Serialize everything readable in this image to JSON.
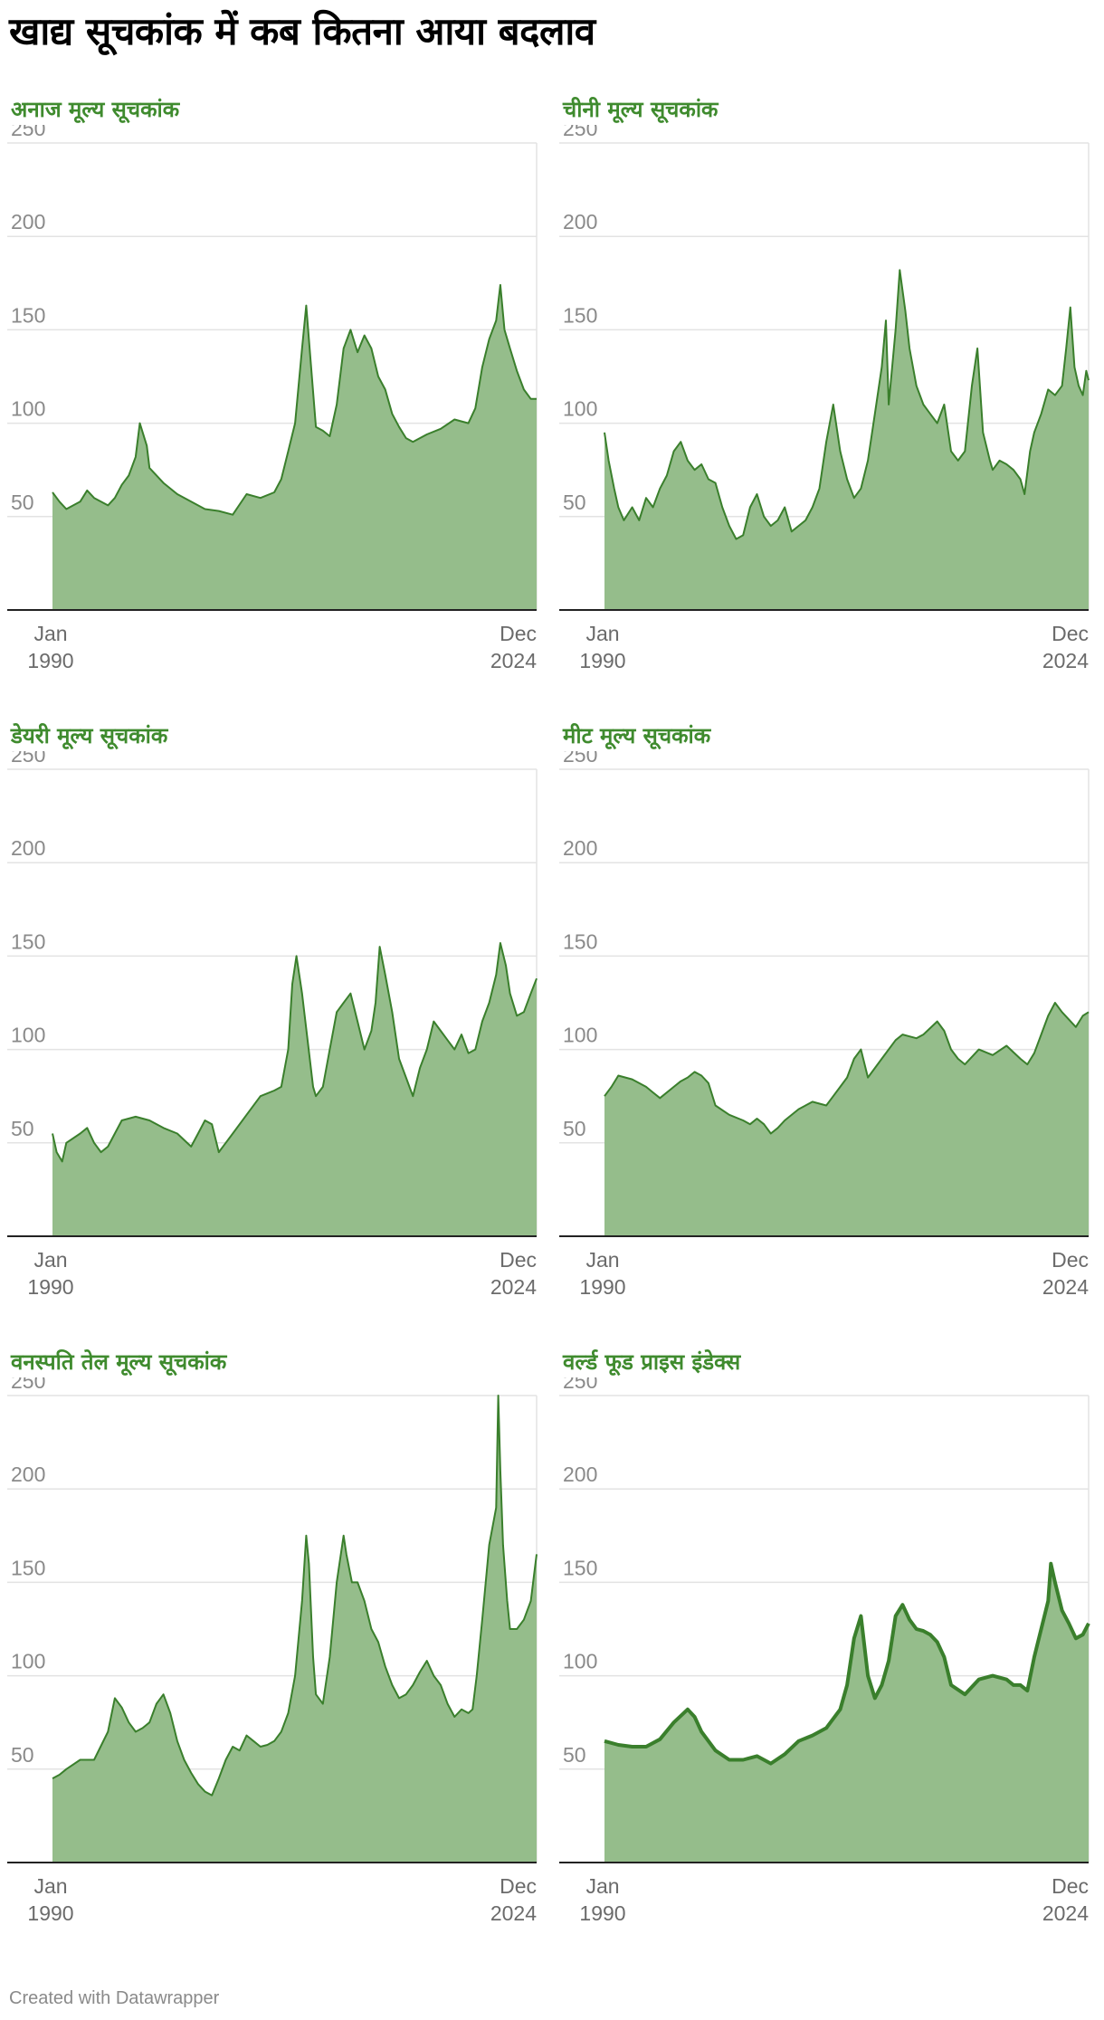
{
  "page_title": "खाद्य सूचकांक में कब कितना आया बदलाव",
  "footer": "Created with Datawrapper",
  "colors": {
    "line": "#3a7f2c",
    "area": "#95bd8b",
    "title": "#3f8b2e",
    "grid": "#e3e3e3",
    "axis": "#222222"
  },
  "chart_data": [
    {
      "type": "area",
      "title": "अनाज मूल्य सूचकांक",
      "x_start_label": [
        "Jan",
        "1990"
      ],
      "x_end_label": [
        "Dec",
        "2024"
      ],
      "x": [
        1990.0,
        1990.5,
        1991.0,
        1992.0,
        1992.5,
        1993.0,
        1994.0,
        1994.5,
        1995.0,
        1995.5,
        1996.0,
        1996.3,
        1996.8,
        1997.0,
        1998.0,
        1999.0,
        2000.0,
        2001.0,
        2002.0,
        2003.0,
        2004.0,
        2005.0,
        2006.0,
        2006.5,
        2007.0,
        2007.5,
        2008.0,
        2008.3,
        2008.6,
        2009.0,
        2009.5,
        2010.0,
        2010.5,
        2011.0,
        2011.5,
        2012.0,
        2012.5,
        2013.0,
        2013.5,
        2014.0,
        2014.5,
        2015.0,
        2015.5,
        2016.0,
        2017.0,
        2018.0,
        2019.0,
        2020.0,
        2020.5,
        2021.0,
        2021.5,
        2022.0,
        2022.3,
        2022.6,
        2023.0,
        2023.5,
        2024.0,
        2024.5,
        2024.92
      ],
      "values": [
        63,
        58,
        54,
        58,
        64,
        60,
        56,
        60,
        67,
        72,
        82,
        100,
        88,
        76,
        68,
        62,
        58,
        54,
        53,
        51,
        62,
        60,
        63,
        70,
        85,
        100,
        140,
        163,
        135,
        98,
        96,
        93,
        110,
        140,
        150,
        138,
        147,
        140,
        125,
        118,
        105,
        98,
        92,
        90,
        94,
        97,
        102,
        100,
        108,
        130,
        145,
        155,
        174,
        150,
        140,
        128,
        118,
        113,
        113
      ],
      "ylim": [
        0,
        250
      ],
      "yticks": [
        "50",
        "100",
        "150",
        "200",
        "250"
      ],
      "line_style": "thin"
    },
    {
      "type": "area",
      "title": "चीनी मूल्य सूचकांक",
      "x_start_label": [
        "Jan",
        "1990"
      ],
      "x_end_label": [
        "Dec",
        "2024"
      ],
      "x": [
        1990.0,
        1990.3,
        1990.7,
        1991.0,
        1991.4,
        1992.0,
        1992.5,
        1993.0,
        1993.5,
        1994.0,
        1994.5,
        1995.0,
        1995.5,
        1996.0,
        1996.5,
        1997.0,
        1997.5,
        1998.0,
        1998.5,
        1999.0,
        1999.5,
        2000.0,
        2000.5,
        2001.0,
        2001.5,
        2002.0,
        2002.5,
        2003.0,
        2003.5,
        2004.0,
        2004.5,
        2005.0,
        2005.5,
        2006.0,
        2006.5,
        2007.0,
        2007.5,
        2008.0,
        2008.5,
        2009.0,
        2009.5,
        2010.0,
        2010.3,
        2010.5,
        2011.0,
        2011.3,
        2011.7,
        2012.0,
        2012.5,
        2013.0,
        2013.5,
        2014.0,
        2014.5,
        2015.0,
        2015.5,
        2016.0,
        2016.5,
        2016.9,
        2017.3,
        2017.8,
        2018.0,
        2018.5,
        2019.0,
        2019.5,
        2020.0,
        2020.3,
        2020.7,
        2021.0,
        2021.5,
        2022.0,
        2022.5,
        2023.0,
        2023.3,
        2023.6,
        2023.9,
        2024.2,
        2024.5,
        2024.75,
        2024.92
      ],
      "values": [
        95,
        80,
        65,
        55,
        48,
        55,
        48,
        60,
        55,
        65,
        72,
        85,
        90,
        80,
        75,
        78,
        70,
        68,
        55,
        45,
        38,
        40,
        55,
        62,
        50,
        45,
        48,
        55,
        42,
        45,
        48,
        55,
        65,
        90,
        110,
        85,
        70,
        60,
        65,
        80,
        105,
        130,
        155,
        110,
        150,
        182,
        160,
        140,
        120,
        110,
        105,
        100,
        110,
        85,
        80,
        85,
        120,
        140,
        95,
        80,
        75,
        80,
        78,
        75,
        70,
        62,
        85,
        95,
        105,
        118,
        115,
        120,
        140,
        162,
        130,
        120,
        115,
        128,
        123
      ],
      "ylim": [
        0,
        250
      ],
      "yticks": [
        "50",
        "100",
        "150",
        "200",
        "250"
      ],
      "line_style": "thin"
    },
    {
      "type": "area",
      "title": "डेयरी मूल्य सूचकांक",
      "x_start_label": [
        "Jan",
        "1990"
      ],
      "x_end_label": [
        "Dec",
        "2024"
      ],
      "x": [
        1990.0,
        1990.3,
        1990.7,
        1991.0,
        1992.0,
        1992.5,
        1993.0,
        1993.5,
        1994.0,
        1994.5,
        1995.0,
        1996.0,
        1997.0,
        1998.0,
        1999.0,
        2000.0,
        2000.5,
        2001.0,
        2001.5,
        2002.0,
        2002.5,
        2003.0,
        2004.0,
        2005.0,
        2006.0,
        2006.5,
        2007.0,
        2007.3,
        2007.6,
        2008.0,
        2008.4,
        2008.8,
        2009.0,
        2009.5,
        2010.0,
        2010.5,
        2011.0,
        2011.5,
        2012.0,
        2012.5,
        2013.0,
        2013.3,
        2013.6,
        2014.0,
        2014.5,
        2015.0,
        2015.5,
        2016.0,
        2016.5,
        2017.0,
        2017.5,
        2018.0,
        2018.5,
        2019.0,
        2019.5,
        2020.0,
        2020.5,
        2021.0,
        2021.5,
        2022.0,
        2022.3,
        2022.7,
        2023.0,
        2023.5,
        2024.0,
        2024.5,
        2024.92
      ],
      "values": [
        55,
        45,
        40,
        50,
        55,
        58,
        50,
        45,
        48,
        55,
        62,
        64,
        62,
        58,
        55,
        48,
        55,
        62,
        60,
        45,
        50,
        55,
        65,
        75,
        78,
        80,
        100,
        135,
        150,
        130,
        105,
        80,
        75,
        80,
        100,
        120,
        125,
        130,
        115,
        100,
        110,
        125,
        155,
        140,
        120,
        95,
        85,
        75,
        90,
        100,
        115,
        110,
        105,
        100,
        108,
        98,
        100,
        115,
        125,
        140,
        157,
        145,
        130,
        118,
        120,
        130,
        138
      ],
      "ylim": [
        0,
        250
      ],
      "yticks": [
        "50",
        "100",
        "150",
        "200",
        "250"
      ],
      "line_style": "thin"
    },
    {
      "type": "area",
      "title": "मीट मूल्य सूचकांक",
      "x_start_label": [
        "Jan",
        "1990"
      ],
      "x_end_label": [
        "Dec",
        "2024"
      ],
      "x": [
        1990.0,
        1990.5,
        1991.0,
        1992.0,
        1993.0,
        1993.5,
        1994.0,
        1995.0,
        1995.5,
        1996.0,
        1996.5,
        1997.0,
        1997.5,
        1998.0,
        1999.0,
        2000.0,
        2000.5,
        2001.0,
        2001.5,
        2002.0,
        2002.5,
        2003.0,
        2004.0,
        2005.0,
        2006.0,
        2006.5,
        2007.0,
        2007.5,
        2008.0,
        2008.5,
        2009.0,
        2010.0,
        2011.0,
        2011.5,
        2012.0,
        2012.5,
        2013.0,
        2014.0,
        2014.5,
        2015.0,
        2015.5,
        2016.0,
        2017.0,
        2018.0,
        2019.0,
        2020.0,
        2020.5,
        2021.0,
        2021.5,
        2022.0,
        2022.5,
        2023.0,
        2024.0,
        2024.5,
        2024.92
      ],
      "values": [
        75,
        80,
        86,
        84,
        80,
        77,
        74,
        80,
        83,
        85,
        88,
        86,
        82,
        70,
        65,
        62,
        60,
        63,
        60,
        55,
        58,
        62,
        68,
        72,
        70,
        75,
        80,
        85,
        95,
        100,
        85,
        95,
        105,
        108,
        107,
        106,
        108,
        115,
        110,
        100,
        95,
        92,
        100,
        97,
        102,
        95,
        92,
        98,
        108,
        118,
        125,
        120,
        112,
        118,
        120
      ],
      "ylim": [
        0,
        250
      ],
      "yticks": [
        "50",
        "100",
        "150",
        "200",
        "250"
      ],
      "line_style": "thin"
    },
    {
      "type": "area",
      "title": "वनस्पति तेल मूल्य सूचकांक",
      "x_start_label": [
        "Jan",
        "1990"
      ],
      "x_end_label": [
        "Dec",
        "2024"
      ],
      "x": [
        1990.0,
        1990.5,
        1991.0,
        1992.0,
        1993.0,
        1994.0,
        1994.5,
        1995.0,
        1995.5,
        1996.0,
        1996.5,
        1997.0,
        1997.5,
        1998.0,
        1998.5,
        1999.0,
        1999.5,
        2000.0,
        2000.5,
        2001.0,
        2001.5,
        2002.0,
        2002.5,
        2003.0,
        2003.5,
        2004.0,
        2004.5,
        2005.0,
        2005.5,
        2006.0,
        2006.5,
        2007.0,
        2007.5,
        2008.0,
        2008.3,
        2008.5,
        2008.8,
        2009.0,
        2009.5,
        2010.0,
        2010.5,
        2011.0,
        2011.2,
        2011.6,
        2012.0,
        2012.5,
        2013.0,
        2013.5,
        2014.0,
        2014.5,
        2015.0,
        2015.5,
        2016.0,
        2016.5,
        2017.0,
        2017.5,
        2018.0,
        2018.5,
        2019.0,
        2019.5,
        2020.0,
        2020.3,
        2020.6,
        2021.0,
        2021.5,
        2022.0,
        2022.15,
        2022.3,
        2022.5,
        2022.8,
        2023.0,
        2023.5,
        2024.0,
        2024.5,
        2024.75,
        2024.92
      ],
      "values": [
        45,
        47,
        50,
        55,
        55,
        70,
        88,
        83,
        75,
        70,
        72,
        75,
        85,
        90,
        80,
        65,
        55,
        48,
        42,
        38,
        36,
        45,
        55,
        62,
        60,
        68,
        65,
        62,
        63,
        65,
        70,
        80,
        100,
        140,
        175,
        160,
        110,
        90,
        85,
        110,
        150,
        175,
        165,
        150,
        150,
        140,
        125,
        118,
        105,
        95,
        88,
        90,
        95,
        102,
        108,
        100,
        95,
        85,
        78,
        82,
        80,
        82,
        100,
        130,
        170,
        190,
        250,
        210,
        170,
        140,
        125,
        125,
        130,
        140,
        155,
        165
      ],
      "ylim": [
        0,
        250
      ],
      "yticks": [
        "50",
        "100",
        "150",
        "200",
        "250"
      ],
      "line_style": "thin"
    },
    {
      "type": "area",
      "title": "वर्ल्ड फूड प्राइस इंडेक्स",
      "x_start_label": [
        "Jan",
        "1990"
      ],
      "x_end_label": [
        "Dec",
        "2024"
      ],
      "x": [
        1990.0,
        1991.0,
        1992.0,
        1993.0,
        1994.0,
        1995.0,
        1996.0,
        1996.5,
        1997.0,
        1998.0,
        1999.0,
        2000.0,
        2001.0,
        2002.0,
        2003.0,
        2004.0,
        2005.0,
        2006.0,
        2007.0,
        2007.5,
        2008.0,
        2008.5,
        2009.0,
        2009.5,
        2010.0,
        2010.5,
        2011.0,
        2011.5,
        2012.0,
        2012.5,
        2013.0,
        2013.5,
        2014.0,
        2014.5,
        2015.0,
        2016.0,
        2017.0,
        2018.0,
        2019.0,
        2019.5,
        2020.0,
        2020.5,
        2021.0,
        2021.5,
        2022.0,
        2022.2,
        2022.5,
        2023.0,
        2023.5,
        2024.0,
        2024.5,
        2024.92
      ],
      "values": [
        65,
        63,
        62,
        62,
        66,
        75,
        82,
        78,
        70,
        60,
        55,
        55,
        57,
        53,
        58,
        65,
        68,
        72,
        82,
        95,
        120,
        132,
        100,
        88,
        95,
        108,
        132,
        138,
        130,
        125,
        124,
        122,
        118,
        110,
        95,
        90,
        98,
        100,
        98,
        95,
        95,
        92,
        110,
        125,
        140,
        160,
        150,
        135,
        128,
        120,
        122,
        128
      ],
      "ylim": [
        0,
        250
      ],
      "yticks": [
        "50",
        "100",
        "150",
        "200",
        "250"
      ],
      "line_style": "bold"
    }
  ]
}
